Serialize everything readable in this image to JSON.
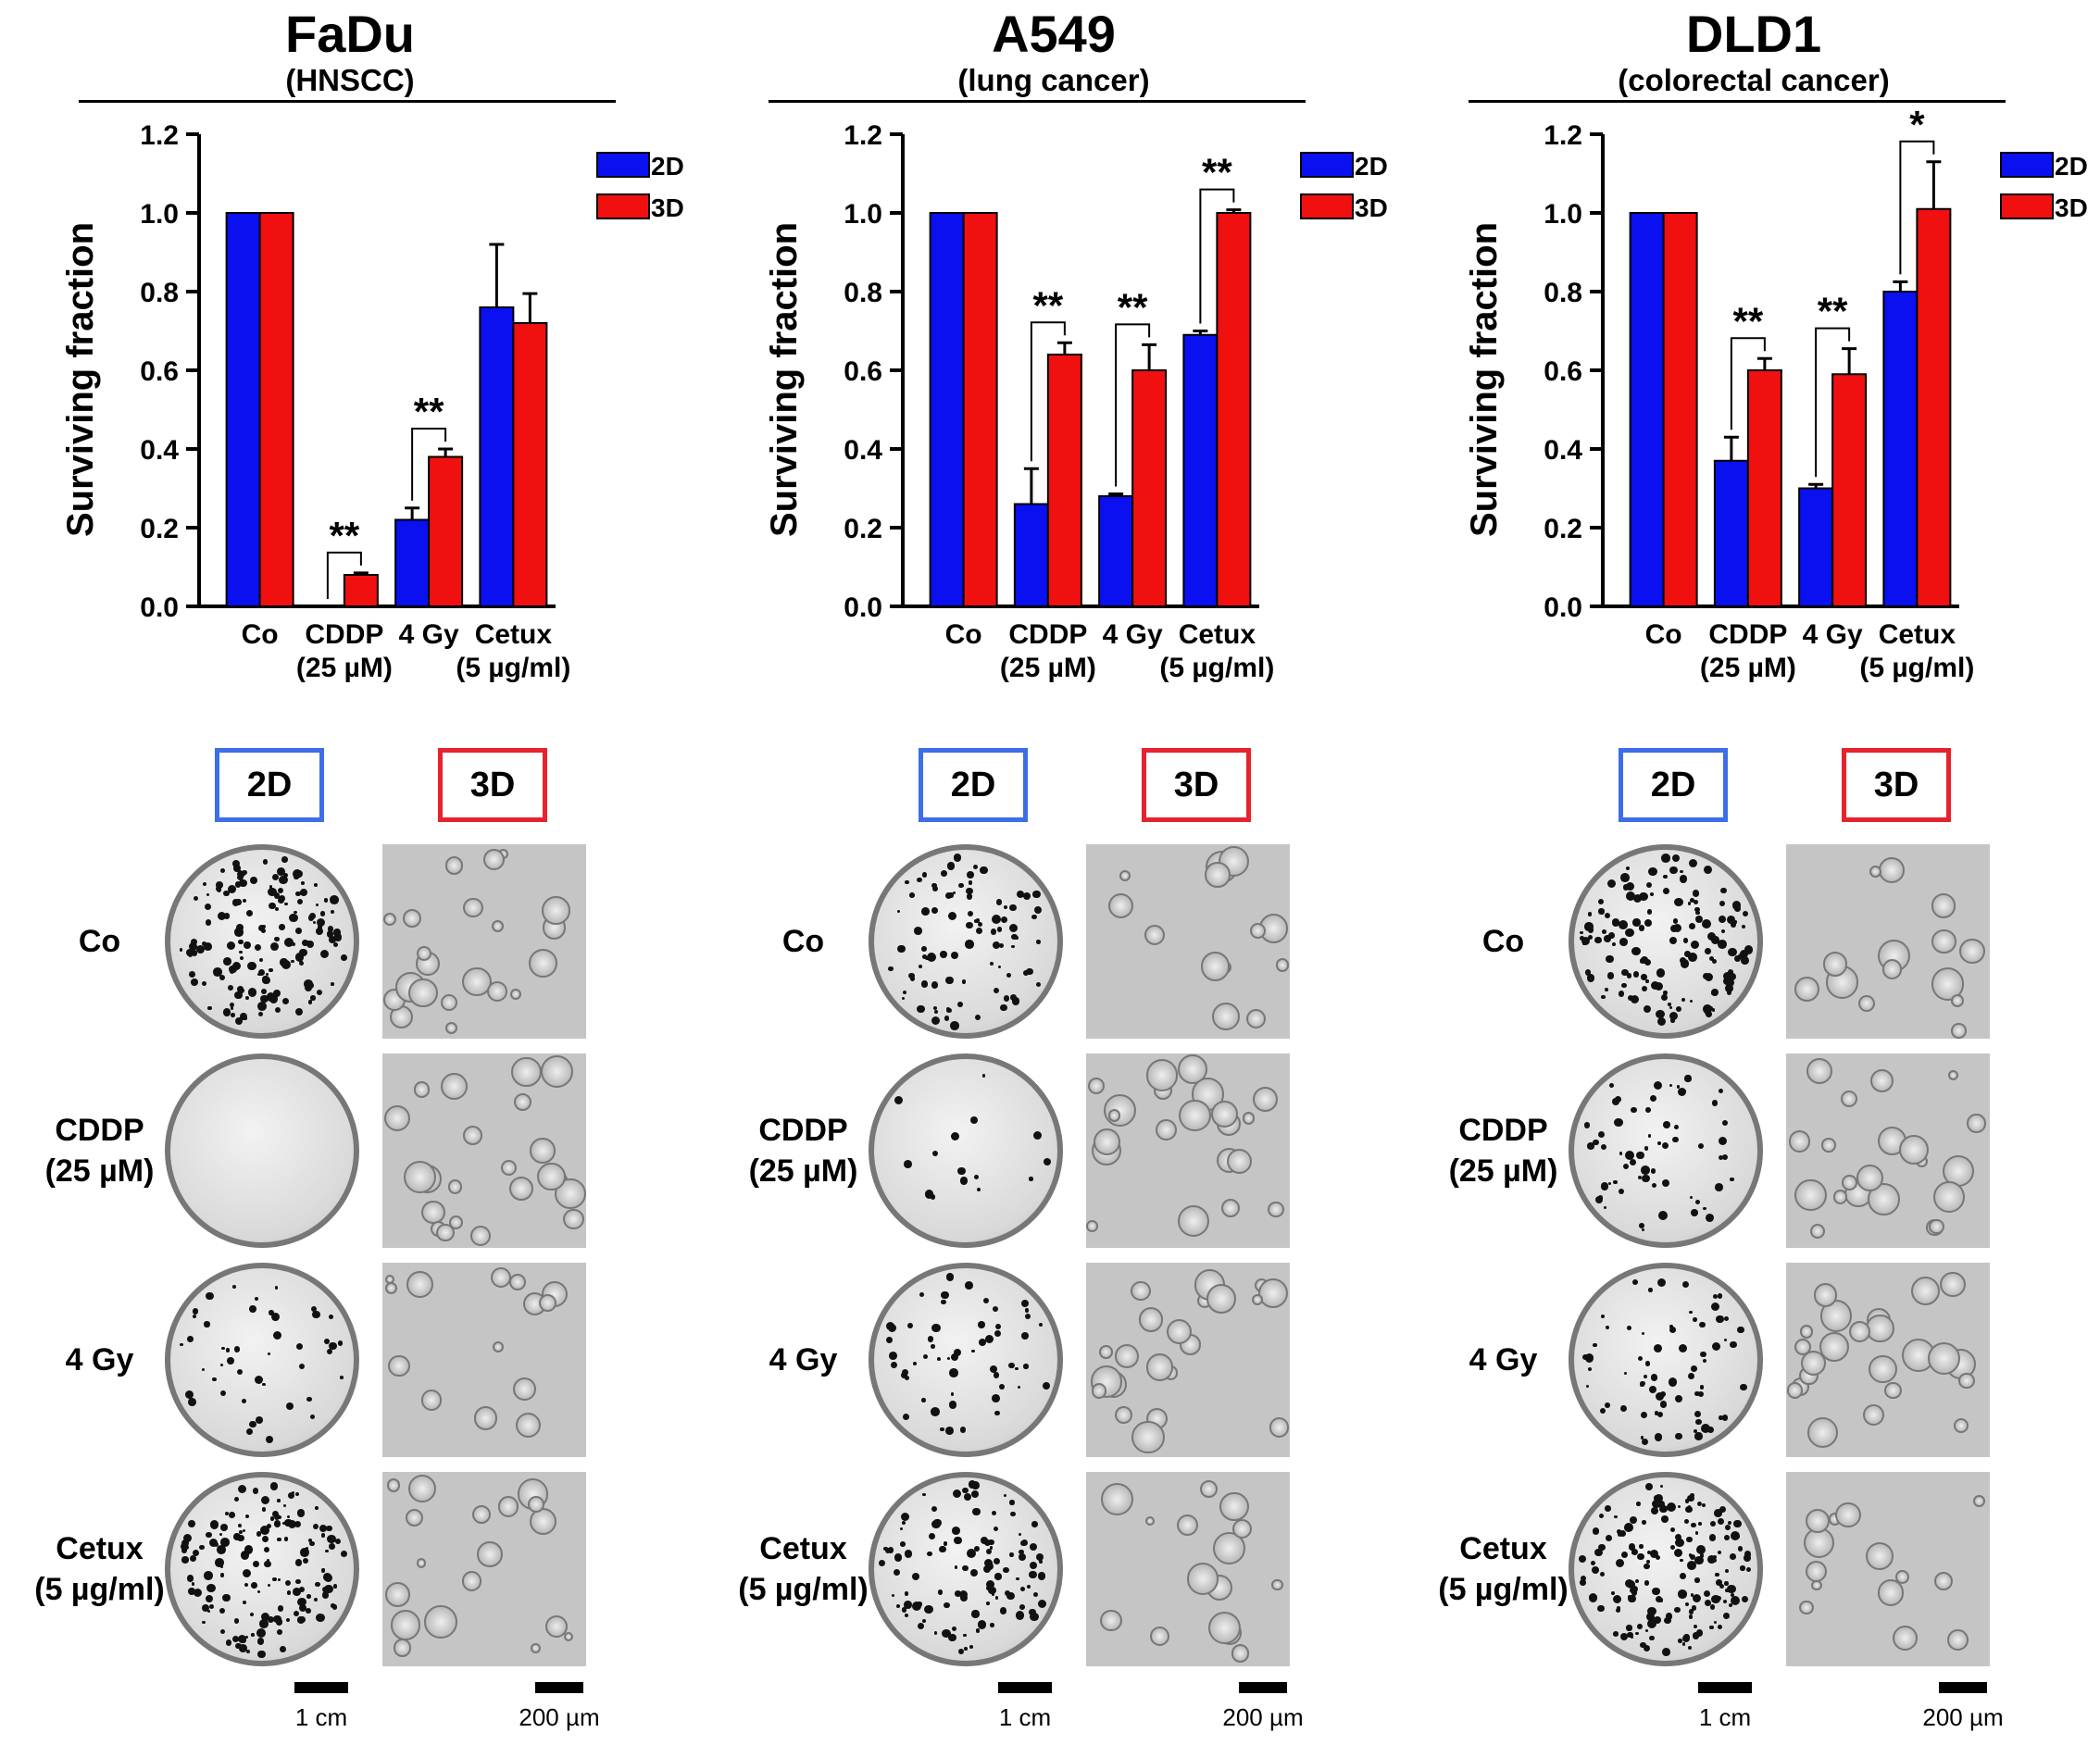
{
  "colors": {
    "d2": "#0a10f0",
    "d3": "#f01010",
    "frame2d": "#3c6ee6",
    "frame3d": "#e6232d"
  },
  "labels": {
    "hdr2d": "2D",
    "hdr3d": "3D",
    "scale_dish": "1 cm",
    "scale_micro": "200 µm"
  },
  "row_labels": [
    [
      "Co"
    ],
    [
      "CDDP",
      "(25 µM)"
    ],
    [
      "4 Gy"
    ],
    [
      "Cetux",
      "(5 µg/ml)"
    ]
  ],
  "panels": [
    {
      "title": "FaDu",
      "subtitle": "(HNSCC)"
    },
    {
      "title": "A549",
      "subtitle": "(lung cancer)"
    },
    {
      "title": "DLD1",
      "subtitle": "(colorectal cancer)"
    }
  ],
  "chart_data": [
    {
      "type": "bar",
      "ylabel": "Surviving fraction",
      "ylim": [
        0,
        1.2
      ],
      "yticks": [
        "0.0",
        "0.2",
        "0.4",
        "0.6",
        "0.8",
        "1.0",
        "1.2"
      ],
      "categories": [
        [
          "Co"
        ],
        [
          "CDDP",
          "(25 µM)"
        ],
        [
          "4 Gy"
        ],
        [
          "Cetux",
          "(5 µg/ml)"
        ]
      ],
      "legend": [
        "2D",
        "3D"
      ],
      "legend_position": "top-right",
      "series": [
        {
          "name": "2D",
          "values": [
            1.0,
            0.0,
            0.22,
            0.76
          ],
          "errors": [
            0,
            0,
            0.03,
            0.16
          ]
        },
        {
          "name": "3D",
          "values": [
            1.0,
            0.08,
            0.38,
            0.72
          ],
          "errors": [
            0,
            0.005,
            0.02,
            0.075
          ]
        }
      ],
      "significance": [
        {
          "category": 1,
          "label": "**"
        },
        {
          "category": 2,
          "label": "**"
        }
      ]
    },
    {
      "type": "bar",
      "ylabel": "Surviving fraction",
      "ylim": [
        0,
        1.2
      ],
      "yticks": [
        "0.0",
        "0.2",
        "0.4",
        "0.6",
        "0.8",
        "1.0",
        "1.2"
      ],
      "categories": [
        [
          "Co"
        ],
        [
          "CDDP",
          "(25 µM)"
        ],
        [
          "4 Gy"
        ],
        [
          "Cetux",
          "(5 µg/ml)"
        ]
      ],
      "legend": [
        "2D",
        "3D"
      ],
      "legend_position": "top-right",
      "series": [
        {
          "name": "2D",
          "values": [
            1.0,
            0.26,
            0.28,
            0.69
          ],
          "errors": [
            0,
            0.09,
            0.006,
            0.01
          ]
        },
        {
          "name": "3D",
          "values": [
            1.0,
            0.64,
            0.6,
            1.0
          ],
          "errors": [
            0,
            0.03,
            0.065,
            0.008
          ]
        }
      ],
      "significance": [
        {
          "category": 1,
          "label": "**"
        },
        {
          "category": 2,
          "label": "**"
        },
        {
          "category": 3,
          "label": "**"
        }
      ]
    },
    {
      "type": "bar",
      "ylabel": "Surviving fraction",
      "ylim": [
        0,
        1.2
      ],
      "yticks": [
        "0.0",
        "0.2",
        "0.4",
        "0.6",
        "0.8",
        "1.0",
        "1.2"
      ],
      "categories": [
        [
          "Co"
        ],
        [
          "CDDP",
          "(25 µM)"
        ],
        [
          "4 Gy"
        ],
        [
          "Cetux",
          "(5 µg/ml)"
        ]
      ],
      "legend": [
        "2D",
        "3D"
      ],
      "legend_position": "top-right",
      "series": [
        {
          "name": "2D",
          "values": [
            1.0,
            0.37,
            0.3,
            0.8
          ],
          "errors": [
            0,
            0.06,
            0.01,
            0.025
          ]
        },
        {
          "name": "3D",
          "values": [
            1.0,
            0.6,
            0.59,
            1.01
          ],
          "errors": [
            0,
            0.03,
            0.065,
            0.12
          ]
        }
      ],
      "significance": [
        {
          "category": 1,
          "label": "**"
        },
        {
          "category": 2,
          "label": "**"
        },
        {
          "category": 3,
          "label": "*"
        }
      ]
    }
  ]
}
